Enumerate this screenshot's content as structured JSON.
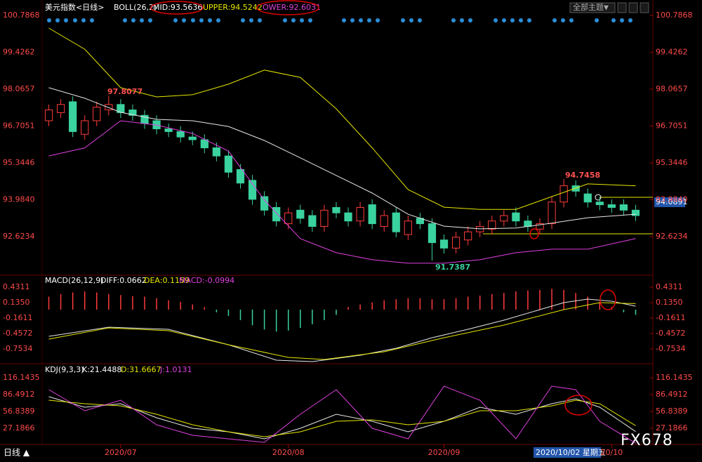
{
  "header": {
    "theme_button": "全部主题",
    "price_tag": "94.0891"
  },
  "footer": {
    "period": "日线 ▲",
    "date": "2020/10/02 星期五",
    "brand": "FX678"
  },
  "chart_data": [
    {
      "type": "candlestick",
      "title": "美元指数<日线>",
      "legend": [
        {
          "label": "BOLL(26,2)",
          "color": "#ffffff"
        },
        {
          "label": "MID:93.5636",
          "color": "#ffffff"
        },
        {
          "label": "UPPER:94.5242",
          "color": "#e6e600"
        },
        {
          "label": "OWER:92.6031",
          "color": "#e040e0"
        }
      ],
      "annotations": [
        "97.8077",
        "94.7458",
        "91.7387"
      ],
      "xlim": [
        -0.5,
        49.5
      ],
      "xticks": [
        {
          "value": 6,
          "label": "2020/07"
        },
        {
          "value": 20,
          "label": "2020/08"
        },
        {
          "value": 33,
          "label": "2020/09"
        },
        {
          "value": 47,
          "label": "20/10"
        }
      ],
      "ylim": [
        91.198,
        100.968
      ],
      "yticks": [
        100.7868,
        99.4262,
        98.0657,
        96.7051,
        95.3446,
        {
          "value": 93.984,
          "label": "93.9840"
        },
        92.6234
      ],
      "up_color": "#ff3b3b",
      "down_color": "#3ad29f",
      "open": [
        96.9,
        97.2,
        97.6,
        96.4,
        96.9,
        97.3,
        97.5,
        97.3,
        97.1,
        96.9,
        96.6,
        96.5,
        96.3,
        96.2,
        95.9,
        95.6,
        95.1,
        94.7,
        94.1,
        93.7,
        93.1,
        93.6,
        93.4,
        93.0,
        93.7,
        93.5,
        93.2,
        93.8,
        93.0,
        93.5,
        92.7,
        93.3,
        93.1,
        92.5,
        92.2,
        92.5,
        92.8,
        92.9,
        93.2,
        93.5,
        93.2,
        92.9,
        93.1,
        93.9,
        94.5,
        94.2,
        93.9,
        93.8,
        93.8,
        93.6
      ],
      "high": [
        97.5,
        97.7,
        97.8,
        97.1,
        97.6,
        97.8077,
        97.7,
        97.5,
        97.3,
        97.1,
        96.8,
        96.7,
        96.5,
        96.4,
        96.1,
        95.8,
        95.3,
        94.9,
        94.3,
        93.9,
        93.7,
        93.8,
        93.6,
        93.8,
        93.9,
        93.7,
        93.9,
        94.0,
        93.6,
        93.7,
        93.4,
        93.5,
        93.3,
        92.7,
        92.8,
        93.0,
        93.2,
        93.4,
        93.6,
        93.7,
        93.4,
        93.3,
        94.1,
        94.7458,
        94.7,
        94.4,
        94.1,
        94.0,
        94.0,
        93.8
      ],
      "low": [
        96.7,
        97.0,
        96.3,
        96.2,
        96.7,
        97.1,
        97.0,
        96.9,
        96.6,
        96.4,
        96.3,
        96.1,
        96.0,
        95.7,
        95.4,
        94.8,
        94.4,
        93.8,
        93.4,
        93.0,
        92.9,
        93.1,
        92.8,
        92.8,
        93.3,
        93.0,
        93.0,
        92.9,
        92.8,
        92.6,
        92.5,
        92.9,
        91.7387,
        92.0,
        92.0,
        92.3,
        92.6,
        92.7,
        93.0,
        93.0,
        92.8,
        92.7,
        92.9,
        93.7,
        94.1,
        93.7,
        93.6,
        93.5,
        93.4,
        93.2
      ],
      "close": [
        97.3,
        97.5,
        96.5,
        96.9,
        97.4,
        97.5,
        97.2,
        97.1,
        96.8,
        96.6,
        96.5,
        96.3,
        96.2,
        95.9,
        95.6,
        95.0,
        94.6,
        94.0,
        93.6,
        93.2,
        93.5,
        93.3,
        93.0,
        93.6,
        93.5,
        93.2,
        93.7,
        93.1,
        93.4,
        92.8,
        93.2,
        93.1,
        92.4,
        92.2,
        92.6,
        92.8,
        93.0,
        93.2,
        93.4,
        93.2,
        93.0,
        93.1,
        93.9,
        94.5,
        94.3,
        93.9,
        93.8,
        93.7,
        93.6,
        93.4
      ],
      "series": [
        {
          "color": "#e6e600",
          "x": [
            0,
            3,
            6,
            9,
            12,
            15,
            18,
            21,
            24,
            27,
            30,
            33,
            36,
            39,
            42,
            45,
            49
          ],
          "values": [
            100.32,
            99.54,
            98.12,
            97.78,
            97.86,
            98.25,
            98.77,
            98.5,
            97.34,
            95.9,
            94.36,
            93.71,
            93.63,
            93.63,
            94.1,
            94.57,
            94.5
          ]
        },
        {
          "color": "#e8e8e8",
          "x": [
            0,
            3,
            6,
            9,
            12,
            15,
            18,
            21,
            24,
            27,
            30,
            33,
            36,
            39,
            42,
            45,
            49
          ],
          "values": [
            98.12,
            97.73,
            97.21,
            96.95,
            96.9,
            96.69,
            96.17,
            95.53,
            94.88,
            94.23,
            93.45,
            93.01,
            92.91,
            92.94,
            93.12,
            93.32,
            93.45
          ]
        },
        {
          "color": "#e040e0",
          "x": [
            0,
            3,
            6,
            9,
            12,
            15,
            18,
            21,
            24,
            27,
            30,
            33,
            36,
            39,
            42,
            45,
            49
          ],
          "values": [
            95.6,
            95.9,
            96.9,
            96.74,
            96.43,
            95.78,
            93.97,
            92.55,
            92.03,
            91.77,
            91.64,
            91.64,
            91.77,
            92.03,
            92.16,
            92.16,
            92.55
          ]
        }
      ]
    },
    {
      "type": "bar",
      "legend": [
        {
          "label": "MACD(26,12,9)",
          "color": "#ffffff"
        },
        {
          "label": "DIFF:0.0662",
          "color": "#ffffff"
        },
        {
          "label": "DEA:0.1159",
          "color": "#e6e600"
        },
        {
          "label": "MACD:-0.0994",
          "color": "#e040e0"
        }
      ],
      "ylim": [
        -1.036,
        0.6195
      ],
      "yticks": [
        0.4311,
        {
          "value": 0.135,
          "label": "0.1350"
        },
        -0.1611,
        -0.4572,
        -0.7534
      ],
      "up_color": "#ff3b3b",
      "down_color": "#3ad29f",
      "values": [
        0.25,
        0.3,
        0.33,
        0.35,
        0.33,
        0.3,
        0.28,
        0.26,
        0.25,
        0.22,
        0.18,
        0.15,
        0.1,
        0.05,
        -0.05,
        -0.12,
        -0.2,
        -0.3,
        -0.38,
        -0.42,
        -0.4,
        -0.35,
        -0.28,
        -0.2,
        -0.1,
        0.05,
        0.1,
        0.14,
        0.18,
        0.2,
        0.22,
        0.22,
        0.2,
        0.2,
        0.22,
        0.25,
        0.27,
        0.3,
        0.32,
        0.35,
        0.37,
        0.38,
        0.4,
        0.38,
        0.32,
        0.25,
        0.15,
        0.05,
        -0.05,
        -0.0994
      ],
      "series": [
        {
          "color": "#e8e8e8",
          "x": [
            0,
            5,
            10,
            15,
            19,
            22,
            26,
            29,
            32,
            35,
            38,
            41,
            43,
            45,
            47,
            49
          ],
          "values": [
            -0.511,
            -0.336,
            -0.376,
            -0.673,
            -0.969,
            -0.996,
            -0.874,
            -0.74,
            -0.538,
            -0.376,
            -0.201,
            0.0,
            0.135,
            0.202,
            0.162,
            0.0662
          ]
        },
        {
          "color": "#e6e600",
          "x": [
            0,
            5,
            10,
            15,
            20,
            23,
            28,
            33,
            38,
            43,
            46,
            49
          ],
          "values": [
            -0.565,
            -0.35,
            -0.403,
            -0.673,
            -0.915,
            -0.955,
            -0.807,
            -0.538,
            -0.296,
            0.0,
            0.135,
            0.1159
          ]
        }
      ]
    },
    {
      "type": "line",
      "legend": [
        {
          "label": "KDJ(9,3,3)",
          "color": "#ffffff"
        },
        {
          "label": "K:21.4488",
          "color": "#ffffff"
        },
        {
          "label": "D:31.6667",
          "color": "#e6e600"
        },
        {
          "label": "J:1.0131",
          "color": "#e040e0"
        }
      ],
      "ylim": [
        -9.88,
        132.2
      ],
      "yticks": [
        116.1435,
        86.4912,
        56.8389,
        27.1866
      ],
      "series": [
        {
          "color": "#e8e8e8",
          "x": [
            0,
            3,
            6,
            9,
            12,
            15,
            18,
            21,
            24,
            27,
            30,
            33,
            36,
            39,
            42,
            44,
            46,
            49
          ],
          "values": [
            82.8,
            64.3,
            70.4,
            45.7,
            27.2,
            21.0,
            8.7,
            27.2,
            51.9,
            39.5,
            21.0,
            39.5,
            64.3,
            51.9,
            70.4,
            79.1,
            64.3,
            21.4
          ]
        },
        {
          "color": "#e6e600",
          "x": [
            0,
            3,
            6,
            9,
            12,
            15,
            18,
            21,
            24,
            27,
            30,
            33,
            36,
            39,
            42,
            44,
            46,
            49
          ],
          "values": [
            76.6,
            70.4,
            66.7,
            51.9,
            33.4,
            21.0,
            12.4,
            21.0,
            39.5,
            42.0,
            33.4,
            39.5,
            58.1,
            58.1,
            66.7,
            76.6,
            70.4,
            31.7
          ]
        },
        {
          "color": "#e040e0",
          "x": [
            0,
            3,
            6,
            9,
            12,
            15,
            18,
            21,
            24,
            27,
            30,
            33,
            36,
            39,
            42,
            44,
            46,
            49
          ],
          "values": [
            95.1,
            58.1,
            76.6,
            33.4,
            14.8,
            8.7,
            2.5,
            51.9,
            95.1,
            27.2,
            8.7,
            101.3,
            76.6,
            8.7,
            101.3,
            95.1,
            39.5,
            1.0
          ]
        }
      ]
    }
  ]
}
